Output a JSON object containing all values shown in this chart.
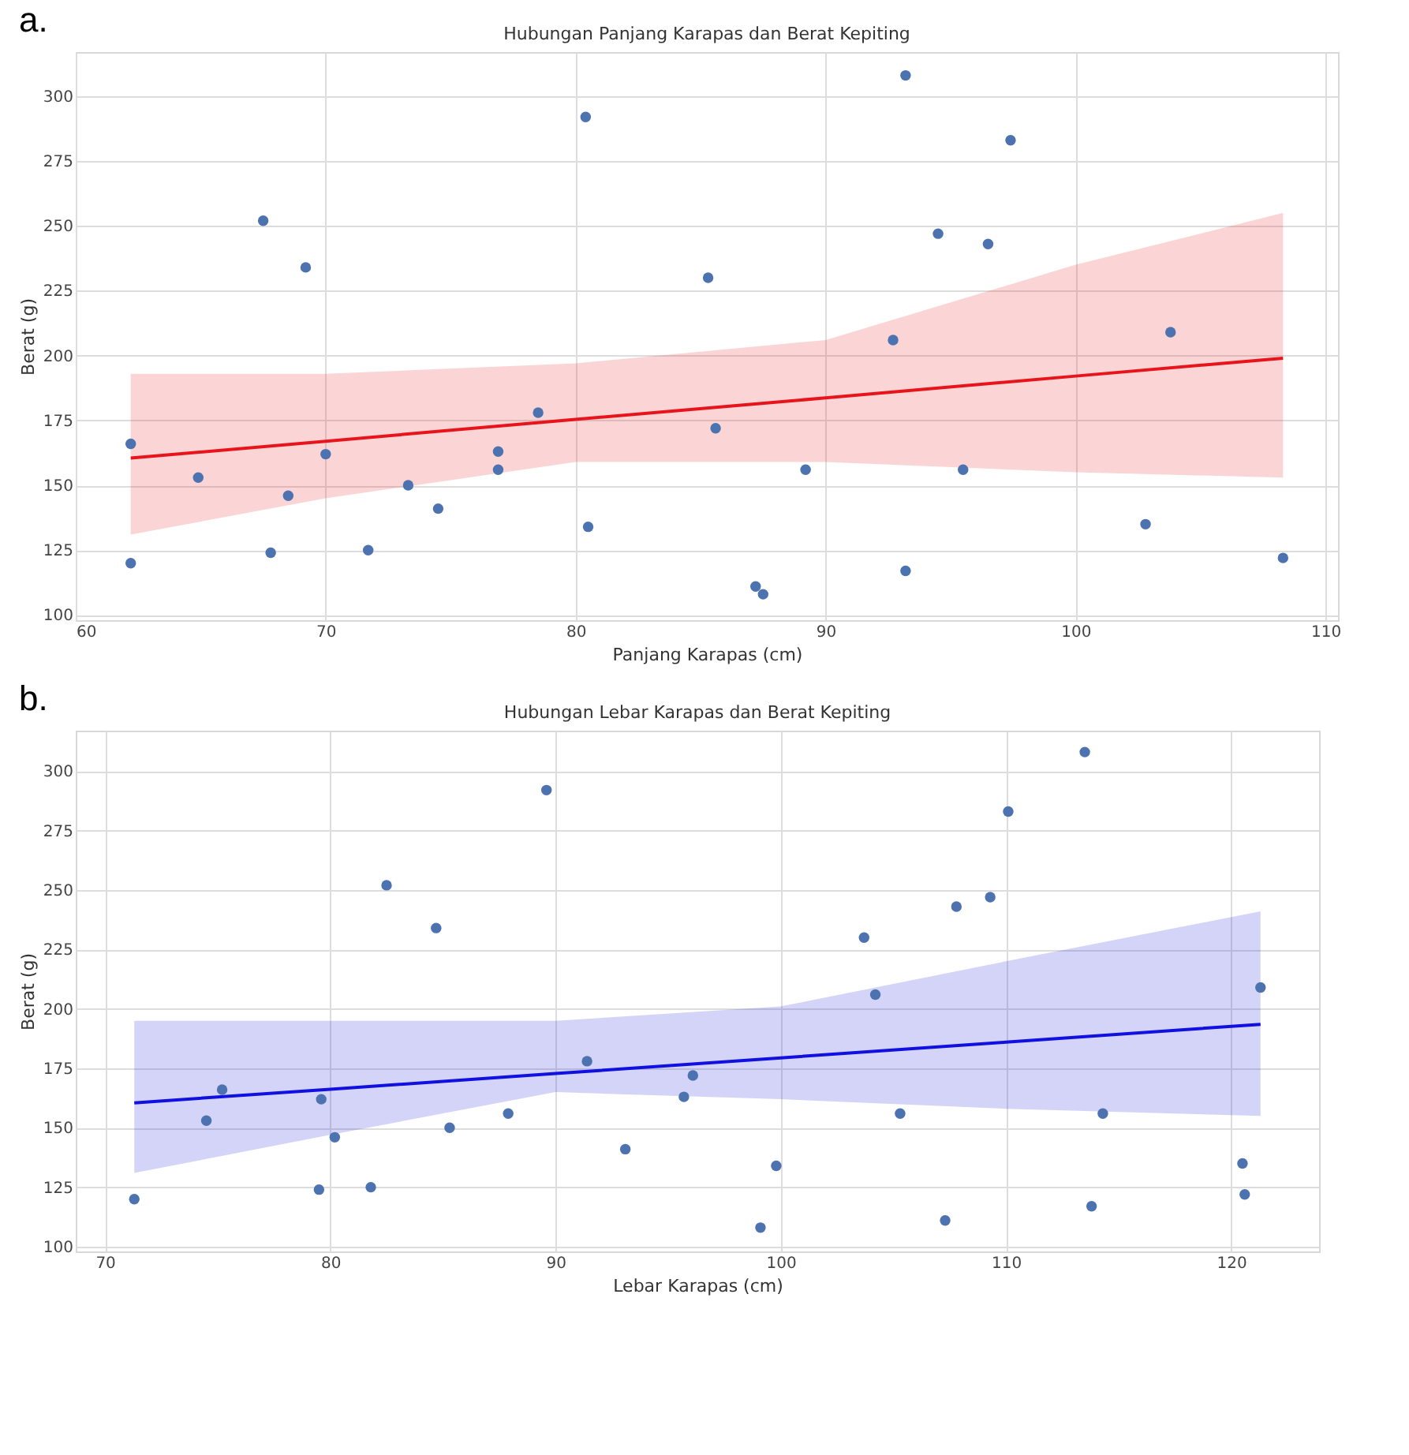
{
  "chart_data": [
    {
      "type": "scatter",
      "title": "Hubungan Panjang Karapas dan Berat Kepiting",
      "xlabel": "Panjang Karapas (cm)",
      "ylabel": "Berat (g)",
      "annotations": [
        "a."
      ],
      "x": [
        62.2,
        62.2,
        64.9,
        67.5,
        67.8,
        68.5,
        69.2,
        70,
        71.7,
        73.3,
        74.5,
        76.9,
        76.9,
        78.5,
        80.4,
        80.5,
        85.3,
        85.6,
        87.2,
        87.5,
        89.2,
        92.7,
        93.2,
        93.2,
        94.5,
        95.5,
        96.5,
        97.4,
        102.8,
        103.8,
        108.3
      ],
      "series": [
        {
          "type": "scatter",
          "color": "#4c72b0",
          "values": [
            166,
            120,
            153,
            252,
            124,
            146,
            234,
            162,
            125,
            150,
            141,
            163,
            156,
            178,
            292,
            134,
            230,
            172,
            111,
            108,
            156,
            206,
            308,
            117,
            247,
            156,
            243,
            283,
            135,
            209,
            122
          ]
        },
        {
          "type": "line",
          "marker": "none",
          "color": "#e8141c",
          "x": [
            62.2,
            70,
            80,
            90,
            100,
            108.3
          ],
          "values": [
            160.5,
            167,
            175.4,
            183.7,
            192.1,
            199
          ],
          "lower": [
            131,
            145,
            159,
            159,
            155,
            153
          ],
          "upper": [
            193,
            193,
            197,
            206,
            235,
            255
          ]
        }
      ],
      "xlim": [
        60,
        110.5
      ],
      "xticks": [
        60,
        70,
        80,
        90,
        100,
        110
      ],
      "ylim": [
        98,
        317
      ],
      "yticks": [
        100,
        125,
        150,
        175,
        200,
        225,
        250,
        275,
        300
      ],
      "grid": true,
      "marker": "circle"
    },
    {
      "type": "scatter",
      "title": "Hubungan Lebar Karapas dan Berat Kepiting",
      "xlabel": "Lebar Karapas (cm)",
      "ylabel": "Berat (g)",
      "annotations": [
        "b."
      ],
      "x": [
        71.3,
        74.5,
        75.2,
        79.5,
        79.6,
        80.2,
        81.8,
        82.5,
        84.7,
        85.3,
        87.9,
        89.6,
        91.4,
        93.1,
        95.7,
        96.1,
        99.1,
        99.8,
        103.7,
        104.2,
        105.3,
        107.3,
        107.8,
        109.3,
        110.1,
        113.5,
        113.8,
        114.3,
        120.5,
        120.6,
        121.3
      ],
      "series": [
        {
          "type": "scatter",
          "color": "#4c72b0",
          "values": [
            120,
            153,
            166,
            124,
            162,
            146,
            125,
            252,
            234,
            150,
            156,
            292,
            178,
            141,
            163,
            172,
            108,
            134,
            230,
            206,
            156,
            111,
            243,
            247,
            283,
            308,
            117,
            156,
            135,
            122,
            209
          ]
        },
        {
          "type": "line",
          "marker": "none",
          "color": "#1010e0",
          "x": [
            71.3,
            80,
            90,
            100,
            110,
            121.3
          ],
          "values": [
            160.5,
            166.2,
            172.8,
            179.4,
            186,
            193.5
          ],
          "lower": [
            131,
            147,
            165,
            162,
            158,
            155
          ],
          "upper": [
            195,
            195,
            195,
            201,
            220,
            241
          ]
        }
      ],
      "xlim": [
        68.7,
        123.9
      ],
      "xticks": [
        70,
        80,
        90,
        100,
        110,
        120
      ],
      "ylim": [
        98,
        317
      ],
      "yticks": [
        100,
        125,
        150,
        175,
        200,
        225,
        250,
        275,
        300
      ],
      "grid": true,
      "marker": "circle"
    }
  ]
}
